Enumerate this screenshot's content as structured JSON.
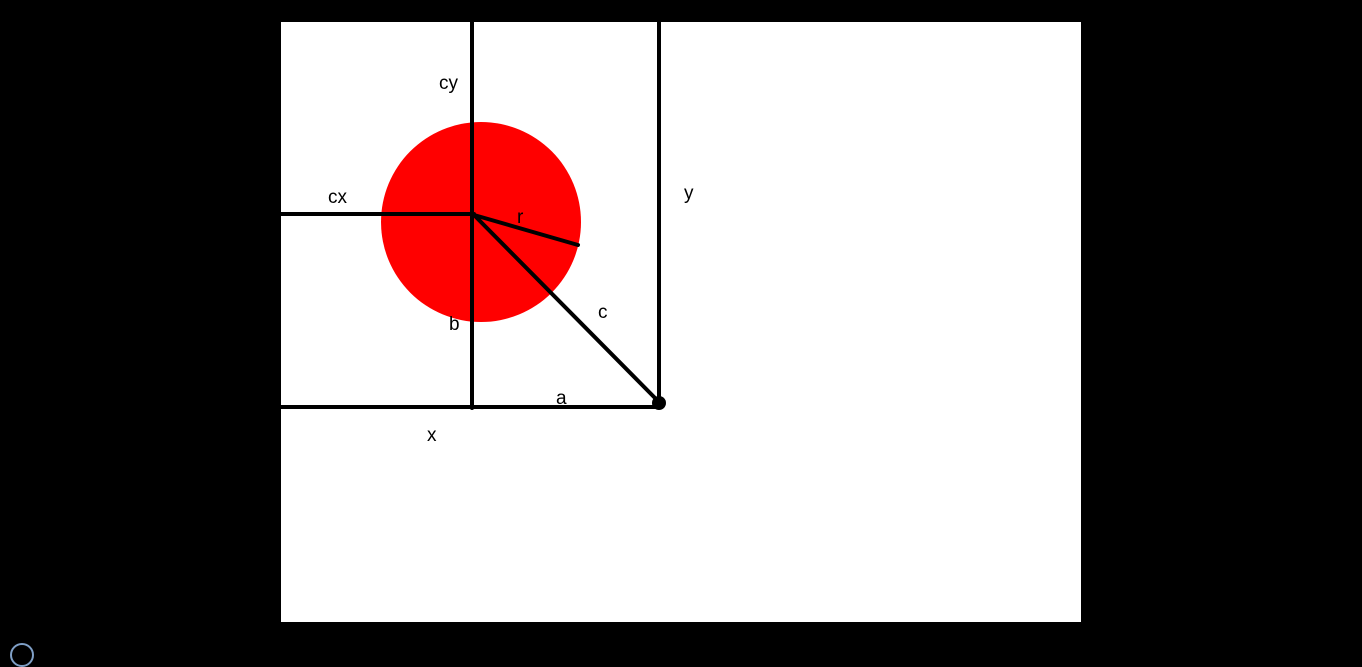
{
  "diagram": {
    "colors": {
      "background": "#000000",
      "canvas": "#ffffff",
      "circle_fill": "#ff0000",
      "line": "#000000"
    },
    "labels": {
      "cy": "cy",
      "cx": "cx",
      "r": "r",
      "y": "y",
      "c": "c",
      "b": "b",
      "a": "a",
      "x": "x"
    }
  }
}
